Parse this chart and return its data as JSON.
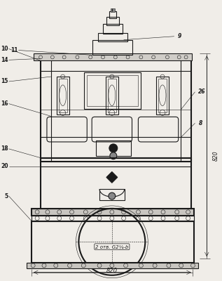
{
  "bg_color": "#f0ede8",
  "line_color": "#1a1a1a",
  "lw_thin": 0.4,
  "lw_med": 0.8,
  "lw_thick": 1.5,
  "dim_bottom": "820",
  "dim_right": "820",
  "dim_text": "2 отв. G2¼-b"
}
